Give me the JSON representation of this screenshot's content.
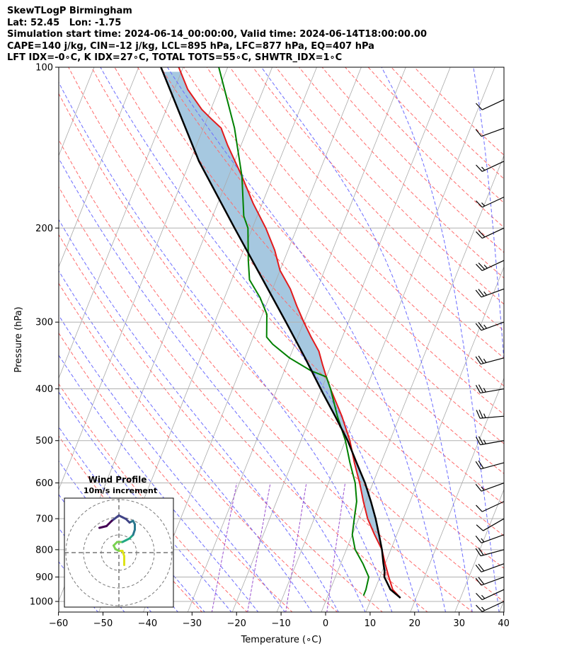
{
  "header": {
    "line1": "SkewTLogP Birmingham",
    "line2": "Lat: 52.45   Lon: -1.75",
    "line3": "Simulation start time: 2024-06-14_00:00:00, Valid time: 2024-06-14T18:00:00.00",
    "line4": "CAPE=140 j/kg, CIN=-12 j/kg, LCL=895 hPa, LFC=877 hPa, EQ=407 hPa",
    "line5": "LFT IDX=-0∘C, K IDX=27∘C, TOTAL TOTS=55∘C, SHWTR_IDX=1∘C"
  },
  "colors": {
    "temperature": "#e31a1c",
    "dewpoint": "#008000",
    "parcel": "#000000",
    "cape_fill": "#a6c8e0",
    "cin_fill": "#f2a7b0",
    "dry_adiabat": "#ff6b6b",
    "moist_adiabat": "#6b6bff",
    "mixing_ratio": "#9a4fcf",
    "isotherm": "#aaaaaa"
  },
  "chart_data": {
    "type": "line",
    "skew_t": true,
    "xlabel": "Temperature (∘C)",
    "ylabel": "Pressure (hPa)",
    "xlim": [
      -60,
      40
    ],
    "ylim": [
      1040,
      100
    ],
    "y_scale": "log",
    "x_ticks": [
      "−60",
      "−50",
      "−40",
      "−30",
      "−20",
      "−10",
      "0",
      "10",
      "20",
      "30",
      "40"
    ],
    "y_ticks": [
      "100",
      "200",
      "300",
      "400",
      "500",
      "600",
      "700",
      "800",
      "900",
      "1000"
    ],
    "grid": true,
    "series": [
      {
        "role": "temperature",
        "points": [
          [
            985,
            16.5
          ],
          [
            950,
            14
          ],
          [
            900,
            12
          ],
          [
            850,
            10
          ],
          [
            800,
            8
          ],
          [
            750,
            5
          ],
          [
            700,
            2
          ],
          [
            650,
            -0.5
          ],
          [
            600,
            -3
          ],
          [
            550,
            -6
          ],
          [
            500,
            -9
          ],
          [
            450,
            -13
          ],
          [
            400,
            -18
          ],
          [
            380,
            -20
          ],
          [
            360,
            -22
          ],
          [
            340,
            -24
          ],
          [
            320,
            -27
          ],
          [
            300,
            -30
          ],
          [
            280,
            -33
          ],
          [
            260,
            -36
          ],
          [
            240,
            -40
          ],
          [
            220,
            -43
          ],
          [
            200,
            -47
          ],
          [
            180,
            -52
          ],
          [
            160,
            -57
          ],
          [
            140,
            -63
          ],
          [
            130,
            -66
          ],
          [
            125,
            -69
          ],
          [
            120,
            -72
          ],
          [
            110,
            -77
          ],
          [
            100,
            -81
          ]
        ]
      },
      {
        "role": "dewpoint",
        "points": [
          [
            975,
            8
          ],
          [
            950,
            8
          ],
          [
            900,
            7.5
          ],
          [
            850,
            5
          ],
          [
            800,
            2
          ],
          [
            750,
            0
          ],
          [
            700,
            -1
          ],
          [
            650,
            -2
          ],
          [
            600,
            -4
          ],
          [
            550,
            -7
          ],
          [
            500,
            -10
          ],
          [
            450,
            -14
          ],
          [
            400,
            -18
          ],
          [
            380,
            -20
          ],
          [
            370,
            -24
          ],
          [
            350,
            -30
          ],
          [
            330,
            -35
          ],
          [
            320,
            -37
          ],
          [
            290,
            -39
          ],
          [
            270,
            -42
          ],
          [
            250,
            -46
          ],
          [
            230,
            -48
          ],
          [
            200,
            -51
          ],
          [
            190,
            -53
          ],
          [
            160,
            -57
          ],
          [
            130,
            -63
          ],
          [
            100,
            -72
          ]
        ]
      },
      {
        "role": "parcel",
        "points": [
          [
            985,
            16.5
          ],
          [
            950,
            13.5
          ],
          [
            900,
            11
          ],
          [
            877,
            10.5
          ],
          [
            850,
            9.6
          ],
          [
            800,
            8
          ],
          [
            750,
            6
          ],
          [
            700,
            3.8
          ],
          [
            650,
            1.2
          ],
          [
            600,
            -1.8
          ],
          [
            550,
            -5.5
          ],
          [
            500,
            -9.5
          ],
          [
            450,
            -14.5
          ],
          [
            407,
            -19.4
          ],
          [
            400,
            -20.2
          ],
          [
            350,
            -26.5
          ],
          [
            300,
            -34
          ],
          [
            250,
            -43
          ],
          [
            200,
            -54
          ],
          [
            150,
            -68
          ],
          [
            100,
            -85
          ]
        ]
      }
    ],
    "cape_range_hpa": [
      877,
      407
    ],
    "cin_range_hpa": [
      895,
      877
    ],
    "wind_barbs": [
      {
        "p": 1000,
        "speed_kt": 15,
        "dir_deg": 245
      },
      {
        "p": 950,
        "speed_kt": 15,
        "dir_deg": 245
      },
      {
        "p": 900,
        "speed_kt": 20,
        "dir_deg": 250
      },
      {
        "p": 850,
        "speed_kt": 20,
        "dir_deg": 250
      },
      {
        "p": 800,
        "speed_kt": 20,
        "dir_deg": 255
      },
      {
        "p": 750,
        "speed_kt": 15,
        "dir_deg": 250
      },
      {
        "p": 700,
        "speed_kt": 10,
        "dir_deg": 240
      },
      {
        "p": 650,
        "speed_kt": 10,
        "dir_deg": 245
      },
      {
        "p": 600,
        "speed_kt": 15,
        "dir_deg": 250
      },
      {
        "p": 550,
        "speed_kt": 20,
        "dir_deg": 255
      },
      {
        "p": 500,
        "speed_kt": 25,
        "dir_deg": 260
      },
      {
        "p": 450,
        "speed_kt": 25,
        "dir_deg": 265
      },
      {
        "p": 400,
        "speed_kt": 25,
        "dir_deg": 260
      },
      {
        "p": 350,
        "speed_kt": 25,
        "dir_deg": 255
      },
      {
        "p": 300,
        "speed_kt": 25,
        "dir_deg": 250
      },
      {
        "p": 260,
        "speed_kt": 25,
        "dir_deg": 250
      },
      {
        "p": 230,
        "speed_kt": 25,
        "dir_deg": 245
      },
      {
        "p": 200,
        "speed_kt": 20,
        "dir_deg": 245
      },
      {
        "p": 175,
        "speed_kt": 15,
        "dir_deg": 245
      },
      {
        "p": 150,
        "speed_kt": 15,
        "dir_deg": 245
      },
      {
        "p": 130,
        "speed_kt": 10,
        "dir_deg": 250
      },
      {
        "p": 115,
        "speed_kt": 10,
        "dir_deg": 245
      }
    ],
    "inset": {
      "title": "Wind Profile",
      "subtitle": "10m/s increment",
      "type": "hodograph",
      "rings_m_s": [
        10,
        20,
        30
      ],
      "points_uv": [
        [
          1.5,
          -3.5
        ],
        [
          1.5,
          -2.5
        ],
        [
          1.5,
          -1
        ],
        [
          1,
          0.5
        ],
        [
          0,
          0.5
        ],
        [
          -1,
          1
        ],
        [
          -1.5,
          2
        ],
        [
          -0.5,
          3
        ],
        [
          1,
          3
        ],
        [
          2,
          3.5
        ],
        [
          3,
          4
        ],
        [
          4,
          5
        ],
        [
          4.5,
          6.5
        ],
        [
          4.5,
          8
        ],
        [
          4,
          9
        ],
        [
          3,
          8.5
        ],
        [
          2,
          9.5
        ],
        [
          1,
          10
        ],
        [
          0,
          10.5
        ],
        [
          -2,
          9
        ],
        [
          -3.5,
          7.5
        ],
        [
          -5.5,
          7
        ]
      ]
    }
  }
}
